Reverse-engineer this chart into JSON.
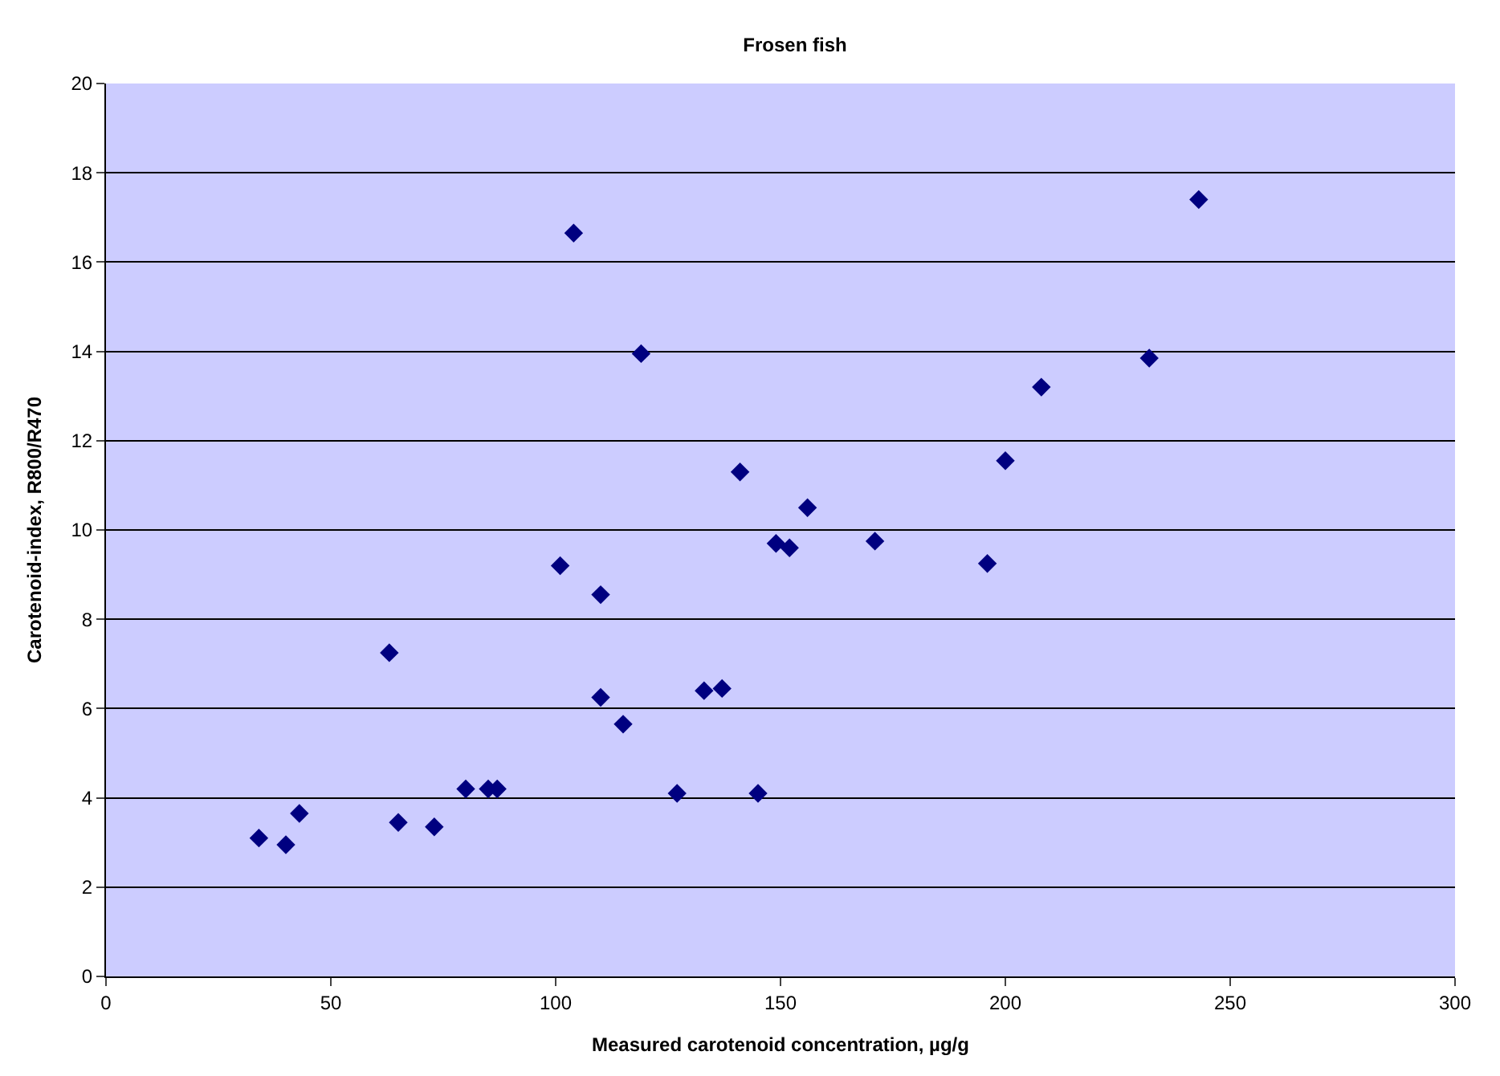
{
  "chart_data": {
    "type": "scatter",
    "title": "Frosen fish",
    "xlabel": "Measured carotenoid concentration, µg/g",
    "ylabel": "Carotenoid-index, R800/R470",
    "x": [
      34,
      40,
      43,
      63,
      65,
      73,
      80,
      85,
      87,
      101,
      104,
      110,
      110,
      115,
      119,
      127,
      133,
      137,
      141,
      145,
      149,
      152,
      156,
      171,
      196,
      200,
      208,
      232,
      243
    ],
    "series": [
      {
        "color": "#000080",
        "values": [
          3.1,
          2.95,
          3.65,
          7.25,
          3.45,
          3.35,
          4.2,
          4.2,
          4.2,
          9.2,
          16.65,
          6.25,
          8.55,
          5.65,
          13.95,
          4.1,
          6.4,
          6.45,
          11.3,
          4.1,
          9.7,
          9.6,
          10.5,
          9.75,
          9.25,
          11.55,
          13.2,
          13.85,
          17.4
        ]
      }
    ],
    "xlim": [
      0,
      300
    ],
    "xticks": [
      0,
      50,
      100,
      150,
      200,
      250,
      300
    ],
    "ylim": [
      0,
      20
    ],
    "yticks": [
      0,
      2,
      4,
      6,
      8,
      10,
      12,
      14,
      16,
      18,
      20
    ],
    "grid": "y",
    "marker": "diamond"
  }
}
